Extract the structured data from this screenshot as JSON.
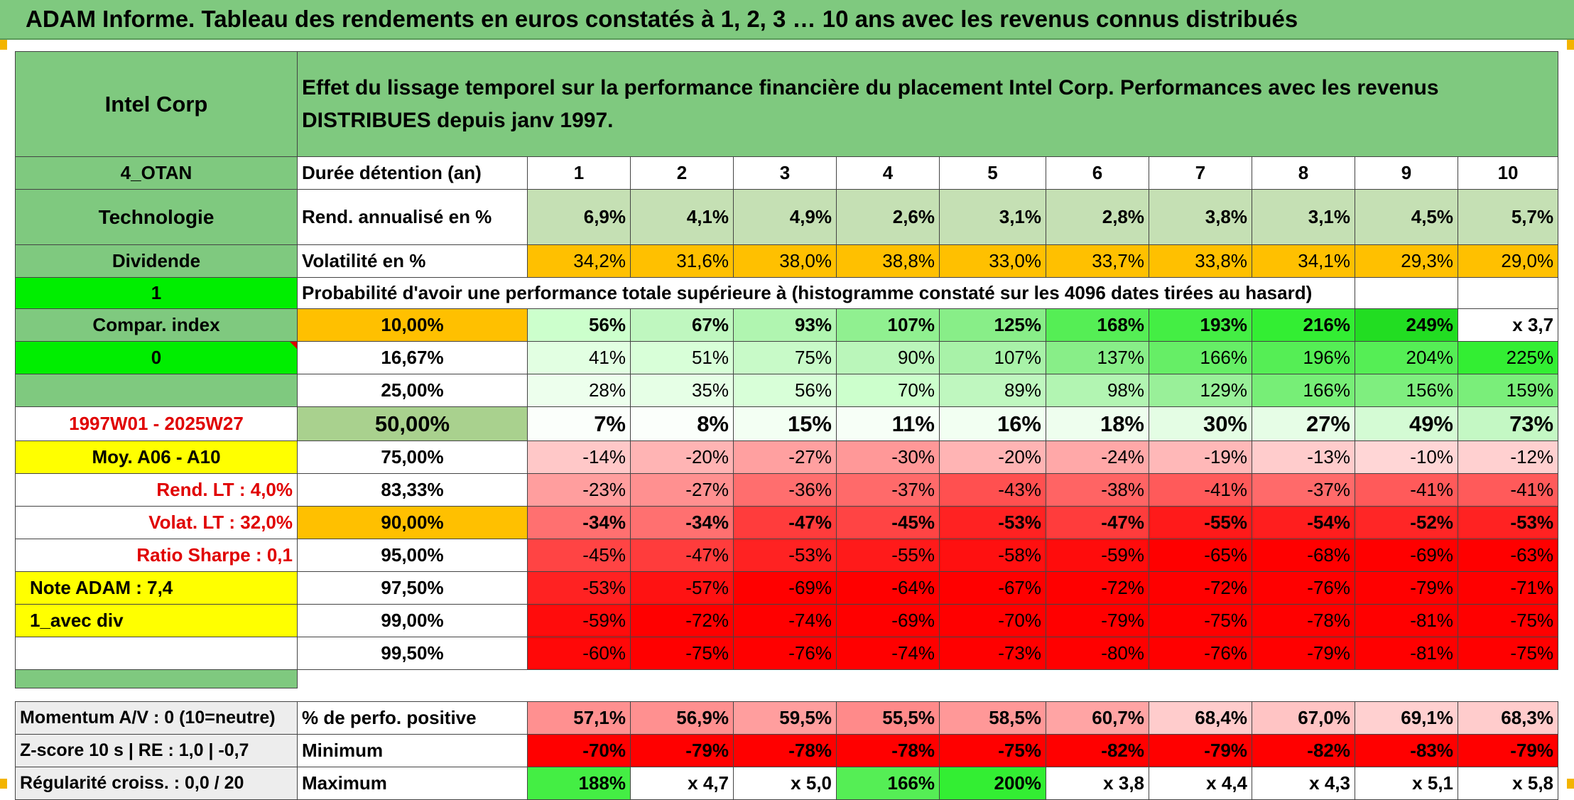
{
  "title": "ADAM Informe. Tableau des rendements en euros constatés à 1, 2, 3 … 10 ans avec les revenus connus distribués",
  "header": {
    "name": "Intel Corp",
    "description": "Effet du lissage temporel sur la performance financière du placement Intel Corp. Performances avec les revenus DISTRIBUES depuis janv 1997."
  },
  "left": {
    "code": "4_OTAN",
    "sector": "Technologie",
    "dividend_label": "Dividende",
    "flag1": "1",
    "compar_label": "Compar. index",
    "flag0": "0",
    "period": "1997W01 - 2025W27",
    "moy": "Moy. A06 - A10",
    "rend_lt": "Rend. LT :   4,0%",
    "volat_lt": "Volat. LT :   32,0%",
    "sharpe": "Ratio Sharpe :    0,1",
    "note": "Note ADAM : 7,4",
    "avec_div": "1_avec div"
  },
  "rows_top": {
    "duration_label": "Durée détention (an)",
    "years": [
      "1",
      "2",
      "3",
      "4",
      "5",
      "6",
      "7",
      "8",
      "9",
      "10"
    ],
    "rend_label": "Rend. annualisé en %",
    "rend": [
      "6,9%",
      "4,1%",
      "4,9%",
      "2,6%",
      "3,1%",
      "2,8%",
      "3,8%",
      "3,1%",
      "4,5%",
      "5,7%"
    ],
    "vol_label": "Volatilité en %",
    "vol": [
      "34,2%",
      "31,6%",
      "38,0%",
      "38,8%",
      "33,0%",
      "33,7%",
      "33,8%",
      "34,1%",
      "29,3%",
      "29,0%"
    ],
    "prob_label": "Probabilité d'avoir une performance totale supérieure à (histogramme constaté sur les 4096 dates tirées au hasard)"
  },
  "colors": {
    "green": "#7fc97f",
    "light_green": "#c5e0b4",
    "orange": "#ffc000",
    "bright_green": "#00ee00",
    "yellow": "#ffff00",
    "red": "#ff0000"
  },
  "prob_rows": [
    {
      "pct": "10,00%",
      "values": [
        "56%",
        "67%",
        "93%",
        "107%",
        "125%",
        "168%",
        "193%",
        "216%",
        "249%",
        "x 3,7"
      ],
      "bg": [
        "#ccffcc",
        "#bff7bf",
        "#b0f5b0",
        "#90f090",
        "#88ee88",
        "#55ee55",
        "#44ee44",
        "#33ee33",
        "#22dd22",
        "#ffffff"
      ],
      "bold": true
    },
    {
      "pct": "16,67%",
      "values": [
        "41%",
        "51%",
        "75%",
        "90%",
        "107%",
        "137%",
        "166%",
        "196%",
        "204%",
        "225%"
      ],
      "bg": [
        "#e2ffe2",
        "#d8ffd8",
        "#c8fac8",
        "#baf6ba",
        "#a8f2a8",
        "#88ee88",
        "#66ee66",
        "#55ee55",
        "#55ee55",
        "#33ee33"
      ],
      "bold": false
    },
    {
      "pct": "25,00%",
      "values": [
        "28%",
        "35%",
        "56%",
        "70%",
        "89%",
        "98%",
        "129%",
        "166%",
        "156%",
        "159%"
      ],
      "bg": [
        "#edffed",
        "#e6ffe6",
        "#d8ffd8",
        "#ccffcc",
        "#bff7bf",
        "#b2f5b2",
        "#99f099",
        "#77ee77",
        "#7fee7f",
        "#7aee7a"
      ],
      "bold": false
    },
    {
      "pct": "50,00%",
      "values": [
        "7%",
        "8%",
        "15%",
        "11%",
        "16%",
        "18%",
        "30%",
        "27%",
        "49%",
        "73%"
      ],
      "bg": [
        "#fbfffb",
        "#fbfffb",
        "#f3fff3",
        "#f7fff7",
        "#f2fff2",
        "#eefeee",
        "#e4fde4",
        "#e6fde6",
        "#d4fbd4",
        "#c4f8c4"
      ],
      "bold": true
    },
    {
      "pct": "75,00%",
      "values": [
        "-14%",
        "-20%",
        "-27%",
        "-30%",
        "-20%",
        "-24%",
        "-19%",
        "-13%",
        "-10%",
        "-12%"
      ],
      "bg": [
        "#ffc8c8",
        "#ffb4b4",
        "#ffa0a0",
        "#ff9898",
        "#ffb4b4",
        "#ffa8a8",
        "#ffb8b8",
        "#ffcccc",
        "#ffd6d6",
        "#ffd0d0"
      ],
      "bold": false
    },
    {
      "pct": "83,33%",
      "values": [
        "-23%",
        "-27%",
        "-36%",
        "-37%",
        "-43%",
        "-38%",
        "-41%",
        "-37%",
        "-41%",
        "-41%"
      ],
      "bg": [
        "#ff9e9e",
        "#ff9090",
        "#ff6e6e",
        "#ff6a6a",
        "#ff5050",
        "#ff6464",
        "#ff5a5a",
        "#ff6a6a",
        "#ff5a5a",
        "#ff5a5a"
      ],
      "bold": false
    },
    {
      "pct": "90,00%",
      "values": [
        "-34%",
        "-34%",
        "-47%",
        "-45%",
        "-53%",
        "-47%",
        "-55%",
        "-54%",
        "-52%",
        "-53%"
      ],
      "bg": [
        "#ff7070",
        "#ff7070",
        "#ff3c3c",
        "#ff4444",
        "#ff2222",
        "#ff3c3c",
        "#ff1a1a",
        "#ff1e1e",
        "#ff2626",
        "#ff2222"
      ],
      "bold": true
    },
    {
      "pct": "95,00%",
      "values": [
        "-45%",
        "-47%",
        "-53%",
        "-55%",
        "-58%",
        "-59%",
        "-65%",
        "-68%",
        "-69%",
        "-63%"
      ],
      "bg": [
        "#ff4444",
        "#ff3c3c",
        "#ff2222",
        "#ff1a1a",
        "#ff1010",
        "#ff0c0c",
        "#ff0000",
        "#ff0000",
        "#ff0000",
        "#ff0000"
      ],
      "bold": false
    },
    {
      "pct": "97,50%",
      "values": [
        "-53%",
        "-57%",
        "-69%",
        "-64%",
        "-67%",
        "-72%",
        "-72%",
        "-76%",
        "-79%",
        "-71%"
      ],
      "bg": [
        "#ff2222",
        "#ff1212",
        "#ff0000",
        "#ff0000",
        "#ff0000",
        "#ff0000",
        "#ff0000",
        "#ff0000",
        "#ff0000",
        "#ff0000"
      ],
      "bold": false
    },
    {
      "pct": "99,00%",
      "values": [
        "-59%",
        "-72%",
        "-74%",
        "-69%",
        "-70%",
        "-79%",
        "-75%",
        "-78%",
        "-81%",
        "-75%"
      ],
      "bg": [
        "#ff0c0c",
        "#ff0000",
        "#ff0000",
        "#ff0000",
        "#ff0000",
        "#ff0000",
        "#ff0000",
        "#ff0000",
        "#ff0000",
        "#ff0000"
      ],
      "bold": false
    },
    {
      "pct": "99,50%",
      "values": [
        "-60%",
        "-75%",
        "-76%",
        "-74%",
        "-73%",
        "-80%",
        "-76%",
        "-79%",
        "-81%",
        "-75%"
      ],
      "bg": [
        "#ff0808",
        "#ff0000",
        "#ff0000",
        "#ff0000",
        "#ff0000",
        "#ff0000",
        "#ff0000",
        "#ff0000",
        "#ff0000",
        "#ff0000"
      ],
      "bold": false
    }
  ],
  "bottom": {
    "momentum": "Momentum A/V : 0 (10=neutre)",
    "zscore": "Z-score 10 s | RE : 1,0 | -0,7",
    "regularite": "Régularité croiss. : 0,0 / 20",
    "pos_label": "% de perfo. positive",
    "pos": [
      "57,1%",
      "56,9%",
      "59,5%",
      "55,5%",
      "58,5%",
      "60,7%",
      "68,4%",
      "67,0%",
      "69,1%",
      "68,3%"
    ],
    "pos_bg": [
      "#ff9090",
      "#ff9090",
      "#ff9e9e",
      "#ff8a8a",
      "#ff9898",
      "#ffa4a4",
      "#ffcccc",
      "#ffc4c4",
      "#ffd0d0",
      "#ffcccc"
    ],
    "min_label": "Minimum",
    "min": [
      "-70%",
      "-79%",
      "-78%",
      "-78%",
      "-75%",
      "-82%",
      "-79%",
      "-82%",
      "-83%",
      "-79%"
    ],
    "max_label": "Maximum",
    "max": [
      "188%",
      "x 4,7",
      "x 5,0",
      "166%",
      "200%",
      "x 3,8",
      "x 4,4",
      "x 4,3",
      "x 5,1",
      "x 5,8"
    ],
    "max_bg": [
      "#44ee44",
      "#ffffff",
      "#ffffff",
      "#55ee55",
      "#33ee33",
      "#ffffff",
      "#ffffff",
      "#ffffff",
      "#ffffff",
      "#ffffff"
    ]
  }
}
